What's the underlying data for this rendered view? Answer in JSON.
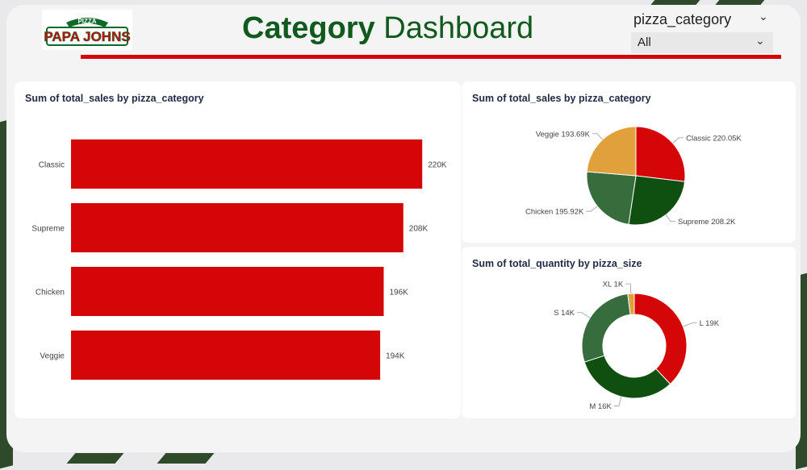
{
  "header": {
    "logo_top": "PIZZA",
    "logo_main": "PAPA JOHNS",
    "title_bold": "Category",
    "title_rest": "Dashboard"
  },
  "slicer": {
    "label": "pizza_category",
    "value": "All"
  },
  "colors": {
    "red": "#d40608",
    "dark_green": "#0f4f10",
    "mid_green": "#376c3c",
    "gold": "#e0a13c"
  },
  "chart_data": [
    {
      "type": "bar",
      "title": "Sum of total_sales by pizza_category",
      "categories": [
        "Classic",
        "Supreme",
        "Chicken",
        "Veggie"
      ],
      "values": [
        220050,
        208200,
        195920,
        193690
      ],
      "data_labels": [
        "220K",
        "208K",
        "196K",
        "194K"
      ],
      "xlim": [
        0,
        225000
      ],
      "color": "#d40608",
      "grid": false
    },
    {
      "type": "pie",
      "title": "Sum of total_sales by pizza_category",
      "slices": [
        {
          "name": "Classic",
          "value": 220050,
          "label": "Classic 220.05K",
          "color": "#d40608"
        },
        {
          "name": "Supreme",
          "value": 208200,
          "label": "Supreme 208.2K",
          "color": "#0f4f10"
        },
        {
          "name": "Chicken",
          "value": 195920,
          "label": "Chicken 195.92K",
          "color": "#376c3c"
        },
        {
          "name": "Veggie",
          "value": 193690,
          "label": "Veggie 193.69K",
          "color": "#e0a13c"
        }
      ]
    },
    {
      "type": "pie",
      "style": "donut",
      "title": "Sum of total_quantity by pizza_size",
      "slices": [
        {
          "name": "L",
          "value": 19,
          "label": "L 19K",
          "color": "#d40608"
        },
        {
          "name": "M",
          "value": 16,
          "label": "M 16K",
          "color": "#0f4f10"
        },
        {
          "name": "S",
          "value": 14,
          "label": "S 14K",
          "color": "#376c3c"
        },
        {
          "name": "XL",
          "value": 1,
          "label": "XL 1K",
          "color": "#e0a13c"
        }
      ]
    }
  ]
}
